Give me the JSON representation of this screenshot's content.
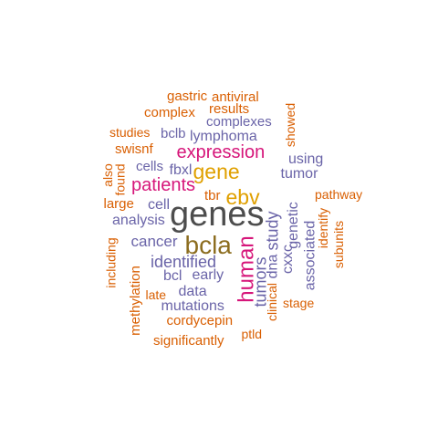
{
  "palette": {
    "dark_gray": "#4d4d4d",
    "olive_brown": "#8c6d1f",
    "gold": "#e0a000",
    "magenta": "#d6167a",
    "slate_blue": "#6a64a8",
    "orange": "#d95f02"
  },
  "words": [
    {
      "text": "genes",
      "color": "#4d4d4d",
      "vertical": false
    },
    {
      "text": "bcla",
      "color": "#8c6d1f",
      "vertical": false
    },
    {
      "text": "gene",
      "color": "#e0a000",
      "vertical": false
    },
    {
      "text": "ebv",
      "color": "#e0a000",
      "vertical": false
    },
    {
      "text": "expression",
      "color": "#d6167a",
      "vertical": false
    },
    {
      "text": "patients",
      "color": "#d6167a",
      "vertical": false
    },
    {
      "text": "human",
      "color": "#d6167a",
      "vertical": true
    },
    {
      "text": "identified",
      "color": "#6a64a8",
      "vertical": false
    },
    {
      "text": "cancer",
      "color": "#6a64a8",
      "vertical": false
    },
    {
      "text": "analysis",
      "color": "#6a64a8",
      "vertical": false
    },
    {
      "text": "complexes",
      "color": "#6a64a8",
      "vertical": false
    },
    {
      "text": "lymphoma",
      "color": "#6a64a8",
      "vertical": false
    },
    {
      "text": "bclb",
      "color": "#6a64a8",
      "vertical": false
    },
    {
      "text": "cells",
      "color": "#6a64a8",
      "vertical": false
    },
    {
      "text": "fbxl",
      "color": "#6a64a8",
      "vertical": false
    },
    {
      "text": "using",
      "color": "#6a64a8",
      "vertical": false
    },
    {
      "text": "tumor",
      "color": "#6a64a8",
      "vertical": false
    },
    {
      "text": "cell",
      "color": "#6a64a8",
      "vertical": false
    },
    {
      "text": "early",
      "color": "#6a64a8",
      "vertical": false
    },
    {
      "text": "bcl",
      "color": "#6a64a8",
      "vertical": false
    },
    {
      "text": "data",
      "color": "#6a64a8",
      "vertical": false
    },
    {
      "text": "mutations",
      "color": "#6a64a8",
      "vertical": false
    },
    {
      "text": "study",
      "color": "#6a64a8",
      "vertical": true
    },
    {
      "text": "tumors",
      "color": "#6a64a8",
      "vertical": true
    },
    {
      "text": "dna",
      "color": "#6a64a8",
      "vertical": true
    },
    {
      "text": "cxxc",
      "color": "#6a64a8",
      "vertical": true
    },
    {
      "text": "genetic",
      "color": "#6a64a8",
      "vertical": true
    },
    {
      "text": "associated",
      "color": "#6a64a8",
      "vertical": true
    },
    {
      "text": "gastric",
      "color": "#d95f02",
      "vertical": false
    },
    {
      "text": "antiviral",
      "color": "#d95f02",
      "vertical": false
    },
    {
      "text": "complex",
      "color": "#d95f02",
      "vertical": false
    },
    {
      "text": "results",
      "color": "#d95f02",
      "vertical": false
    },
    {
      "text": "studies",
      "color": "#d95f02",
      "vertical": false
    },
    {
      "text": "swisnf",
      "color": "#d95f02",
      "vertical": false
    },
    {
      "text": "large",
      "color": "#d95f02",
      "vertical": false
    },
    {
      "text": "tbr",
      "color": "#d95f02",
      "vertical": false
    },
    {
      "text": "pathway",
      "color": "#d95f02",
      "vertical": false
    },
    {
      "text": "late",
      "color": "#d95f02",
      "vertical": false
    },
    {
      "text": "cordycepin",
      "color": "#d95f02",
      "vertical": false
    },
    {
      "text": "stage",
      "color": "#d95f02",
      "vertical": false
    },
    {
      "text": "significantly",
      "color": "#d95f02",
      "vertical": false
    },
    {
      "text": "ptld",
      "color": "#d95f02",
      "vertical": false
    },
    {
      "text": "showed",
      "color": "#d95f02",
      "vertical": true
    },
    {
      "text": "also",
      "color": "#d95f02",
      "vertical": true
    },
    {
      "text": "found",
      "color": "#d95f02",
      "vertical": true
    },
    {
      "text": "identify",
      "color": "#d95f02",
      "vertical": true
    },
    {
      "text": "subunits",
      "color": "#d95f02",
      "vertical": true
    },
    {
      "text": "including",
      "color": "#d95f02",
      "vertical": true
    },
    {
      "text": "methylation",
      "color": "#d95f02",
      "vertical": true
    },
    {
      "text": "clinical",
      "color": "#d95f02",
      "vertical": true
    }
  ]
}
